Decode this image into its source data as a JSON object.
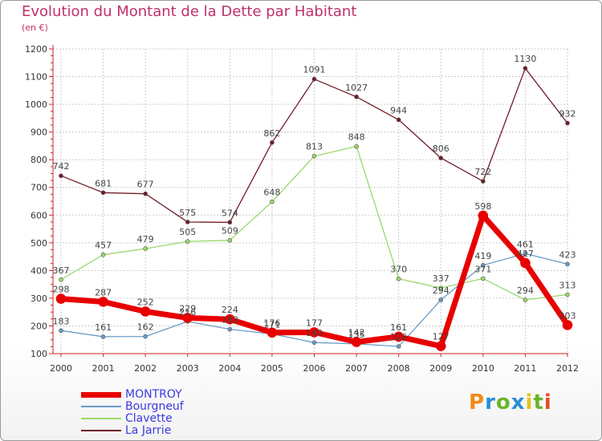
{
  "colors": {
    "title": "#c0306a",
    "axis": "#cc2222",
    "grid": "#cccccc",
    "label": "#333333",
    "legend_text": "#3a3ae0"
  },
  "chart_data": {
    "type": "line",
    "title": "Evolution du Montant de la Dette par Habitant",
    "subtitle": "(en €)",
    "x": [
      "2000",
      "2001",
      "2002",
      "2003",
      "2004",
      "2005",
      "2006",
      "2007",
      "2008",
      "2009",
      "2010",
      "2011",
      "2012"
    ],
    "ylim": [
      100,
      1200
    ],
    "yticks": [
      100,
      200,
      300,
      400,
      500,
      600,
      700,
      800,
      900,
      1000,
      1100,
      1200
    ],
    "grid": true,
    "legend_position": "bottom-left",
    "series": [
      {
        "name": "La Jarrie",
        "color": "#701c28",
        "width": 1.3,
        "marker": 2.5,
        "values": [
          742,
          681,
          677,
          575,
          574,
          862,
          1091,
          1027,
          944,
          806,
          722,
          1130,
          932
        ],
        "labels": [
          "742",
          "681",
          "677",
          "575",
          "574",
          "862",
          "1091",
          "1027",
          "944",
          "806",
          "722",
          "1130",
          "932"
        ]
      },
      {
        "name": "Clavette",
        "color": "#9ad86a",
        "width": 1.3,
        "marker": 2.5,
        "values": [
          367,
          457,
          479,
          505,
          509,
          648,
          813,
          848,
          370,
          337,
          371,
          294,
          313
        ],
        "labels": [
          "367",
          "457",
          "479",
          "505",
          "509",
          "648",
          "813",
          "848",
          "370",
          "337",
          "371",
          "294",
          "313"
        ]
      },
      {
        "name": "Bourgneuf",
        "color": "#6a9cc8",
        "width": 1.3,
        "marker": 2.5,
        "values": [
          183,
          161,
          162,
          216,
          188,
          171,
          140,
          135,
          126,
          294,
          419,
          461,
          423
        ],
        "labels": [
          "183",
          "161",
          "162",
          "216",
          "188",
          "171",
          "140",
          "135",
          "126",
          "294",
          "419",
          "461",
          "423"
        ]
      },
      {
        "name": "MONTROY",
        "color": "#e80000",
        "width": 7,
        "marker": 6,
        "values": [
          298,
          287,
          252,
          229,
          224,
          176,
          177,
          142,
          161,
          127,
          598,
          427,
          203
        ],
        "labels": [
          "298",
          "287",
          "252",
          "229",
          "224",
          "176",
          "177",
          "142",
          "161",
          "127",
          "598",
          "427",
          "203"
        ]
      }
    ],
    "legend": [
      "MONTROY",
      "Bourgneuf",
      "Clavette",
      "La Jarrie"
    ]
  },
  "brand": {
    "letters": [
      "P",
      "r",
      "o",
      "x",
      "i",
      "t",
      "i"
    ],
    "colors": [
      "#f28a1a",
      "#2a8fd6",
      "#6ab42a",
      "#2a8fd6",
      "#e8c21a",
      "#6ab42a",
      "#e84a2a"
    ]
  }
}
